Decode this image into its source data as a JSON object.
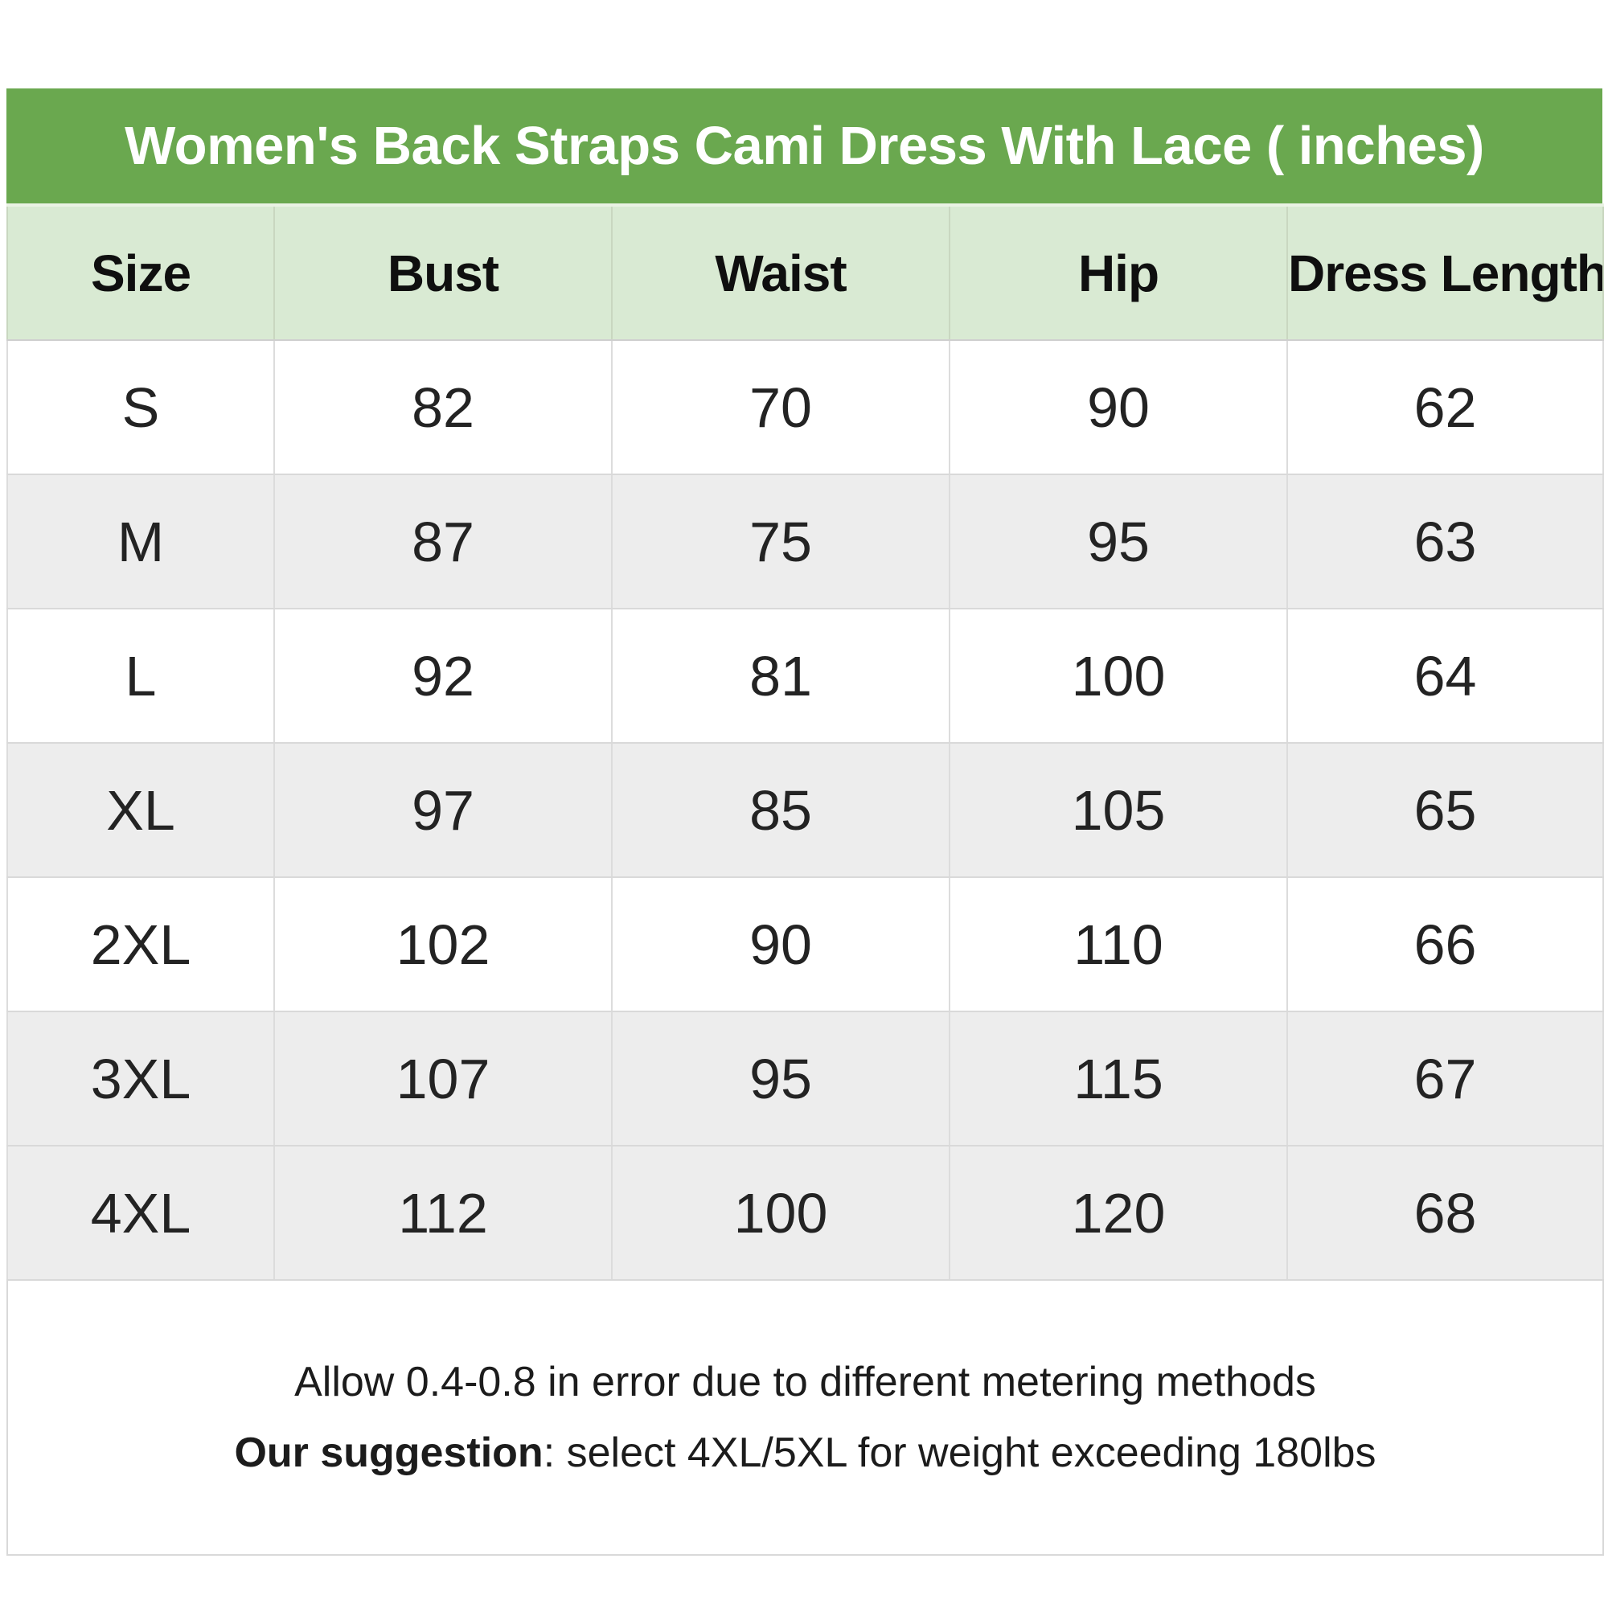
{
  "title": "Women's Back Straps Cami Dress With Lace ( inches)",
  "chart_data": {
    "type": "table",
    "title": "Women's Back Straps Cami Dress With Lace ( inches)",
    "unit": "inches",
    "columns": [
      "Size",
      "Bust",
      "Waist",
      "Hip",
      "Dress Length"
    ],
    "rows": [
      [
        "S",
        82,
        70,
        90,
        62
      ],
      [
        "M",
        87,
        75,
        95,
        63
      ],
      [
        "L",
        92,
        81,
        100,
        64
      ],
      [
        "XL",
        97,
        85,
        105,
        65
      ],
      [
        "2XL",
        102,
        90,
        110,
        66
      ],
      [
        "3XL",
        107,
        95,
        115,
        67
      ],
      [
        "4XL",
        112,
        100,
        120,
        68
      ]
    ],
    "row_shading": [
      false,
      true,
      false,
      true,
      false,
      true,
      true
    ],
    "notes": [
      "Allow 0.4-0.8 in error due to different metering methods",
      "Our suggestion: select 4XL/5XL for weight exceeding 180lbs"
    ]
  },
  "footer": {
    "note": "Allow 0.4-0.8 in error due to different metering methods",
    "suggestion_label": "Our suggestion",
    "suggestion_text": ": select 4XL/5XL for weight exceeding 180lbs"
  },
  "colors": {
    "title_bg": "#6aa84f",
    "title_text": "#ffffff",
    "header_bg": "#d9ead3",
    "alt_row_bg": "#ededed",
    "border": "#d9d9d9"
  }
}
